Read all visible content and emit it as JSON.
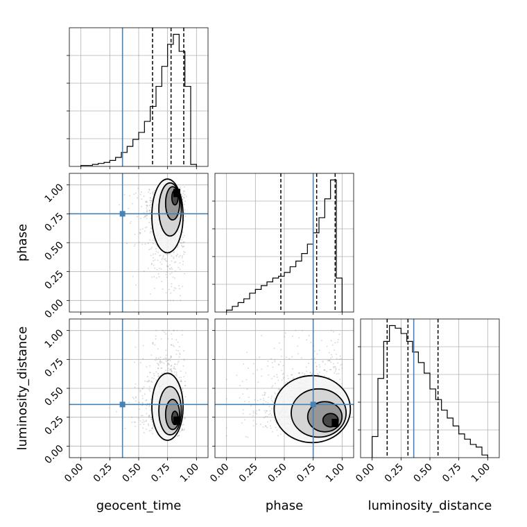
{
  "chart_data": {
    "type": "corner",
    "parameters": [
      "geocent_time",
      "phase",
      "luminosity_distance"
    ],
    "axis_labels": {
      "x": [
        "geocent_time",
        "phase",
        "luminosity_distance"
      ],
      "y": [
        "phase",
        "luminosity_distance"
      ]
    },
    "tick_labels": [
      "0.00",
      "0.25",
      "0.50",
      "0.75",
      "1.00"
    ],
    "tick_values": [
      0,
      0.25,
      0.5,
      0.75,
      1.0
    ],
    "grid": true,
    "colors": {
      "truth": "#4682b4",
      "hist": "#000000",
      "scatter": "#999999"
    },
    "truths": {
      "geocent_time": 0.36,
      "phase": 0.75,
      "luminosity_distance": 0.36
    },
    "quantiles": {
      "geocent_time": [
        0.62,
        0.78,
        0.89
      ],
      "phase": [
        0.47,
        0.78,
        0.94
      ],
      "luminosity_distance": [
        0.13,
        0.31,
        0.57
      ]
    },
    "histograms": {
      "geocent_time": {
        "bin_edges": [
          0,
          0.05,
          0.1,
          0.15,
          0.2,
          0.25,
          0.3,
          0.35,
          0.4,
          0.45,
          0.5,
          0.55,
          0.6,
          0.65,
          0.7,
          0.75,
          0.8,
          0.85,
          0.9,
          0.95,
          1.0
        ],
        "counts": [
          1,
          1,
          2,
          3,
          4,
          6,
          9,
          14,
          20,
          27,
          34,
          45,
          60,
          80,
          100,
          122,
          132,
          115,
          80,
          2
        ]
      },
      "phase": {
        "bin_edges": [
          0,
          0.05,
          0.1,
          0.15,
          0.2,
          0.25,
          0.3,
          0.35,
          0.4,
          0.45,
          0.5,
          0.55,
          0.6,
          0.65,
          0.7,
          0.75,
          0.8,
          0.85,
          0.9,
          0.95,
          1.0
        ],
        "counts": [
          1,
          3,
          5,
          7,
          10,
          12,
          14,
          16,
          18,
          19,
          21,
          24,
          27,
          31,
          36,
          42,
          50,
          60,
          70,
          18
        ]
      },
      "luminosity_distance": {
        "bin_edges": [
          0,
          0.05,
          0.1,
          0.15,
          0.2,
          0.25,
          0.3,
          0.35,
          0.4,
          0.45,
          0.5,
          0.55,
          0.6,
          0.65,
          0.7,
          0.75,
          0.8,
          0.85,
          0.9,
          0.95,
          1.0
        ],
        "counts": [
          8,
          30,
          44,
          50,
          49,
          47,
          44,
          40,
          36,
          32,
          26,
          22,
          18,
          15,
          12,
          9,
          7,
          5,
          4,
          1
        ]
      }
    },
    "densities": [
      {
        "x": "geocent_time",
        "y": "phase",
        "peak": [
          0.83,
          0.93
        ],
        "spread": [
          0.09,
          0.22
        ]
      },
      {
        "x": "geocent_time",
        "y": "luminosity_distance",
        "peak": [
          0.83,
          0.22
        ],
        "spread": [
          0.09,
          0.2
        ]
      },
      {
        "x": "phase",
        "y": "luminosity_distance",
        "peak": [
          0.94,
          0.2
        ],
        "spread": [
          0.22,
          0.2
        ]
      }
    ]
  }
}
